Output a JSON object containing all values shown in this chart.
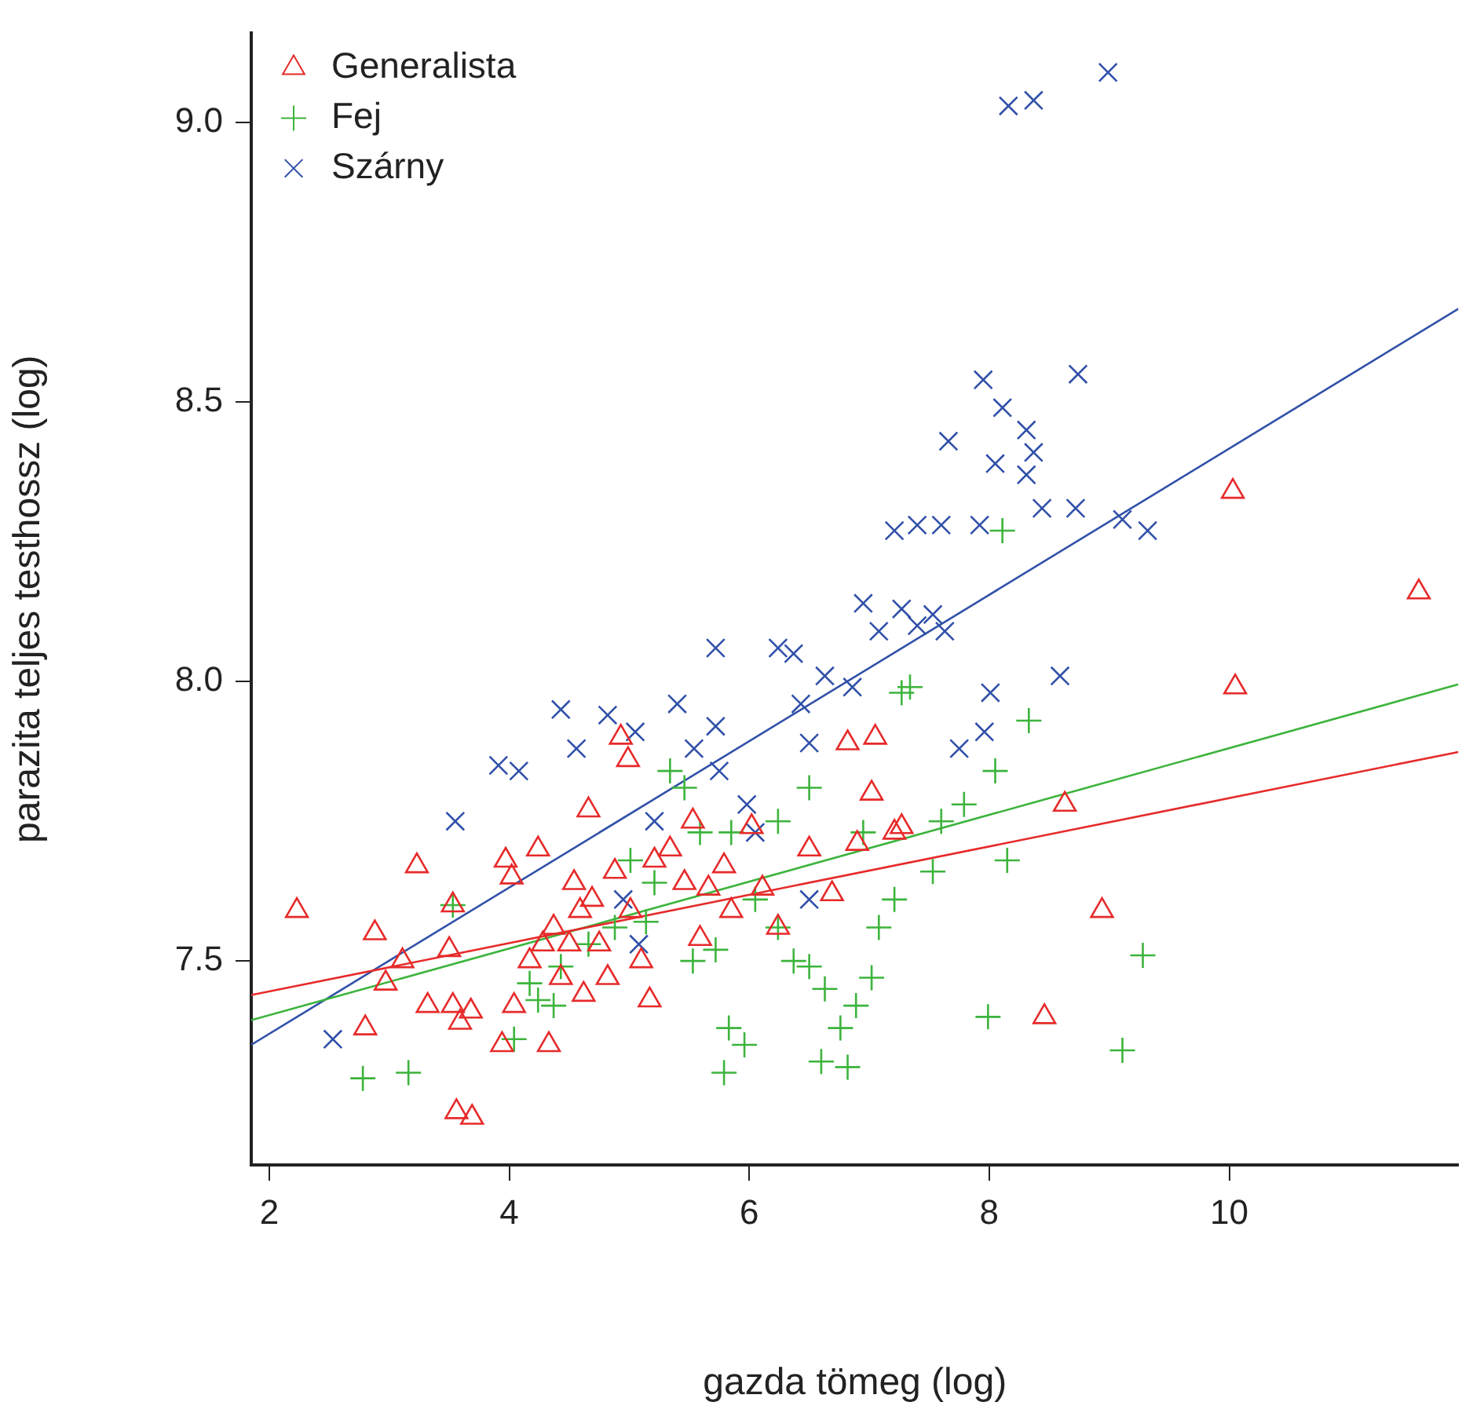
{
  "chart_data": {
    "type": "scatter",
    "xlabel": "gazda tömeg (log)",
    "ylabel": "parazita teljes testhossz (log)",
    "xlim": [
      1.85,
      11.91
    ],
    "ylim": [
      7.135,
      9.16
    ],
    "xticks": [
      2,
      4,
      6,
      8,
      10
    ],
    "yticks": [
      7.5,
      {
        "value": 8,
        "label": "8.0"
      },
      8.5,
      {
        "value": 9,
        "label": "9.0"
      }
    ],
    "grid": false,
    "legend": "top left",
    "series": [
      {
        "name": "Generalista",
        "color": "#e62a2a",
        "marker": "triangle",
        "x": [
          2.23,
          2.88,
          3.23,
          3.11,
          2.97,
          2.8,
          3.32,
          3.53,
          3.59,
          3.68,
          3.5,
          3.53,
          3.56,
          3.69,
          3.97,
          4.02,
          4.04,
          3.94,
          4.33,
          4.24,
          4.66,
          4.93,
          4.99,
          4.17,
          4.37,
          4.5,
          4.59,
          4.69,
          4.75,
          4.82,
          4.54,
          4.88,
          5.01,
          5.1,
          4.43,
          4.62,
          4.28,
          5.21,
          5.34,
          5.46,
          5.66,
          5.59,
          5.79,
          5.85,
          5.53,
          6.02,
          6.11,
          6.24,
          6.5,
          6.69,
          6.82,
          7.05,
          7.02,
          6.9,
          7.21,
          7.27,
          5.17,
          8.63,
          8.94,
          8.46,
          10.03,
          10.05,
          11.58
        ],
        "values": [
          7.59,
          7.55,
          7.67,
          7.5,
          7.46,
          7.38,
          7.42,
          7.42,
          7.39,
          7.41,
          7.52,
          7.6,
          7.23,
          7.22,
          7.68,
          7.65,
          7.42,
          7.35,
          7.35,
          7.7,
          7.77,
          7.9,
          7.86,
          7.5,
          7.56,
          7.53,
          7.59,
          7.61,
          7.53,
          7.47,
          7.64,
          7.66,
          7.59,
          7.5,
          7.47,
          7.44,
          7.53,
          7.68,
          7.7,
          7.64,
          7.63,
          7.54,
          7.67,
          7.59,
          7.75,
          7.74,
          7.63,
          7.56,
          7.7,
          7.62,
          7.89,
          7.9,
          7.8,
          7.71,
          7.73,
          7.74,
          7.43,
          7.78,
          7.59,
          7.4,
          8.34,
          7.99,
          8.16
        ]
      },
      {
        "name": "Fej",
        "color": "#3cb43c",
        "marker": "cross",
        "x": [
          2.78,
          3.16,
          3.53,
          4.04,
          4.24,
          4.43,
          4.66,
          4.88,
          5.01,
          5.21,
          5.34,
          5.53,
          5.72,
          5.79,
          5.83,
          5.96,
          5.85,
          6.05,
          6.24,
          6.37,
          6.5,
          6.5,
          6.63,
          6.6,
          6.76,
          6.82,
          6.89,
          7.02,
          7.08,
          7.21,
          7.27,
          7.34,
          7.6,
          7.79,
          8.05,
          8.15,
          8.11,
          8.33,
          7.99,
          9.11,
          9.28,
          7.53,
          6.95,
          6.24,
          5.59,
          5.46,
          5.14,
          4.37,
          4.17
        ],
        "values": [
          7.29,
          7.3,
          7.6,
          7.36,
          7.43,
          7.49,
          7.53,
          7.56,
          7.68,
          7.64,
          7.84,
          7.5,
          7.52,
          7.3,
          7.38,
          7.35,
          7.73,
          7.61,
          7.56,
          7.5,
          7.49,
          7.81,
          7.45,
          7.32,
          7.38,
          7.31,
          7.42,
          7.47,
          7.56,
          7.61,
          7.98,
          7.99,
          7.75,
          7.78,
          7.84,
          7.68,
          8.27,
          7.93,
          7.4,
          7.34,
          7.51,
          7.66,
          7.73,
          7.75,
          7.73,
          7.81,
          7.57,
          7.42,
          7.46
        ]
      },
      {
        "name": "Szárny",
        "color": "#3050a8",
        "marker": "x",
        "x": [
          2.53,
          3.55,
          3.91,
          4.08,
          4.43,
          4.56,
          4.82,
          5.05,
          5.4,
          5.72,
          5.72,
          5.54,
          5.75,
          5.98,
          6.24,
          6.37,
          6.43,
          6.5,
          6.63,
          6.86,
          6.95,
          7.08,
          7.27,
          7.4,
          7.53,
          7.63,
          7.21,
          7.4,
          7.6,
          7.92,
          7.66,
          7.95,
          8.11,
          8.05,
          8.31,
          8.37,
          8.31,
          8.44,
          8.72,
          8.74,
          9.11,
          9.32,
          8.59,
          8.01,
          7.96,
          7.75,
          8.16,
          8.37,
          8.99,
          6.05,
          5.21,
          4.95,
          5.08,
          6.5
        ],
        "values": [
          7.36,
          7.75,
          7.85,
          7.84,
          7.95,
          7.88,
          7.94,
          7.91,
          7.96,
          8.06,
          7.92,
          7.88,
          7.84,
          7.78,
          8.06,
          8.05,
          7.96,
          7.89,
          8.01,
          7.99,
          8.14,
          8.09,
          8.13,
          8.1,
          8.12,
          8.09,
          8.27,
          8.28,
          8.28,
          8.28,
          8.43,
          8.54,
          8.49,
          8.39,
          8.45,
          8.41,
          8.37,
          8.31,
          8.31,
          8.55,
          8.29,
          8.27,
          8.01,
          7.98,
          7.91,
          7.88,
          9.03,
          9.04,
          9.09,
          7.73,
          7.75,
          7.61,
          7.53,
          7.61
        ]
      },
      {
        "type": "line",
        "color": "#e62a2a",
        "marker": "none",
        "x": [
          1.85,
          11.91
        ],
        "values": [
          7.439,
          7.874
        ]
      },
      {
        "type": "line",
        "color": "#3cb43c",
        "marker": "none",
        "x": [
          1.85,
          11.91
        ],
        "values": [
          7.394,
          7.995
        ]
      },
      {
        "type": "line",
        "color": "#3050a8",
        "marker": "none",
        "x": [
          1.85,
          11.91
        ],
        "values": [
          7.35,
          8.667
        ]
      }
    ]
  }
}
